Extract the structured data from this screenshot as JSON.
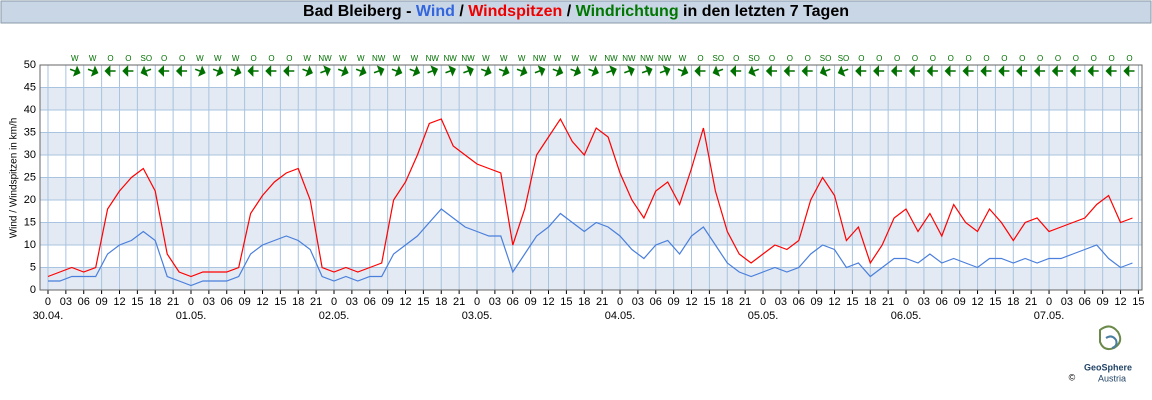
{
  "chart_data": {
    "type": "line",
    "title": [
      {
        "text": "Bad Bleiberg - ",
        "color": "#000000"
      },
      {
        "text": "Wind",
        "color": "#3366dd"
      },
      {
        "text": " / ",
        "color": "#000000"
      },
      {
        "text": "Windspitzen",
        "color": "#ee0000"
      },
      {
        "text": " / ",
        "color": "#000000"
      },
      {
        "text": "Windrichtung",
        "color": "#007700"
      },
      {
        "text": " in den letzten 7 Tagen",
        "color": "#000000"
      }
    ],
    "y_label": "Wind / Windspitzen in km/h",
    "x": [
      0,
      2,
      4,
      6,
      8,
      10,
      12,
      14,
      16,
      18,
      20,
      22,
      24,
      26,
      28,
      30,
      32,
      34,
      36,
      38,
      40,
      42,
      44,
      46,
      48,
      50,
      52,
      54,
      56,
      58,
      60,
      62,
      64,
      66,
      68,
      70,
      72,
      74,
      76,
      78,
      80,
      82,
      84,
      86,
      88,
      90,
      92,
      94,
      96,
      98,
      100,
      102,
      104,
      106,
      108,
      110,
      112,
      114,
      116,
      118,
      120,
      122,
      124,
      126,
      128,
      130,
      132,
      134,
      136,
      138,
      140,
      142,
      144,
      146,
      148,
      150,
      152,
      154,
      156,
      158,
      160,
      162,
      164,
      166,
      168,
      170,
      172,
      174,
      176,
      178,
      180,
      182
    ],
    "series": [
      {
        "name": "Windspitzen",
        "color": "#ff0000",
        "values": [
          3,
          4,
          5,
          4,
          5,
          18,
          22,
          25,
          27,
          22,
          8,
          4,
          3,
          4,
          4,
          4,
          5,
          17,
          21,
          24,
          26,
          27,
          20,
          5,
          4,
          5,
          4,
          5,
          6,
          20,
          24,
          30,
          37,
          38,
          32,
          30,
          28,
          27,
          26,
          10,
          18,
          30,
          34,
          38,
          33,
          30,
          36,
          34,
          26,
          20,
          16,
          22,
          24,
          19,
          27,
          36,
          22,
          13,
          8,
          6,
          8,
          10,
          9,
          11,
          20,
          25,
          21,
          11,
          14,
          6,
          10,
          16,
          18,
          13,
          17,
          12,
          19,
          15,
          13,
          18,
          15,
          11,
          15,
          16,
          13,
          14,
          15,
          16,
          19,
          21,
          15,
          16
        ]
      },
      {
        "name": "Wind",
        "color": "#4a7fdc",
        "values": [
          2,
          2,
          3,
          3,
          3,
          8,
          10,
          11,
          13,
          11,
          3,
          2,
          1,
          2,
          2,
          2,
          3,
          8,
          10,
          11,
          12,
          11,
          9,
          3,
          2,
          3,
          2,
          3,
          3,
          8,
          10,
          12,
          15,
          18,
          16,
          14,
          13,
          12,
          12,
          4,
          8,
          12,
          14,
          17,
          15,
          13,
          15,
          14,
          12,
          9,
          7,
          10,
          11,
          8,
          12,
          14,
          10,
          6,
          4,
          3,
          4,
          5,
          4,
          5,
          8,
          10,
          9,
          5,
          6,
          3,
          5,
          7,
          7,
          6,
          8,
          6,
          7,
          6,
          5,
          7,
          7,
          6,
          7,
          6,
          7,
          7,
          8,
          9,
          10,
          7,
          5,
          6
        ]
      }
    ],
    "direction": {
      "color": "#007000",
      "x": [
        4.5,
        7.5,
        10.5,
        13.5,
        16.5,
        19.5,
        22.5,
        25.5,
        28.5,
        31.5,
        34.5,
        37.5,
        40.5,
        43.5,
        46.5,
        49.5,
        52.5,
        55.5,
        58.5,
        61.5,
        64.5,
        67.5,
        70.5,
        73.5,
        76.5,
        79.5,
        82.5,
        85.5,
        88.5,
        91.5,
        94.5,
        97.5,
        100.5,
        103.5,
        106.5,
        109.5,
        112.5,
        115.5,
        118.5,
        121.5,
        124.5,
        127.5,
        130.5,
        133.5,
        136.5,
        139.5,
        142.5,
        145.5,
        148.5,
        151.5,
        154.5,
        157.5,
        160.5,
        163.5,
        166.5,
        169.5,
        172.5,
        175.5,
        178.5,
        181.5
      ],
      "labels": [
        "W",
        "W",
        "O",
        "O",
        "SO",
        "O",
        "O",
        "W",
        "W",
        "W",
        "O",
        "O",
        "O",
        "W",
        "NW",
        "W",
        "W",
        "NW",
        "W",
        "W",
        "NW",
        "NW",
        "NW",
        "W",
        "W",
        "W",
        "NW",
        "W",
        "W",
        "W",
        "NW",
        "NW",
        "NW",
        "NW",
        "W",
        "O",
        "SO",
        "O",
        "SO",
        "O",
        "O",
        "O",
        "SO",
        "SO",
        "O",
        "O",
        "O",
        "O",
        "O",
        "O",
        "O",
        "O",
        "O",
        "O",
        "O",
        "O",
        "O",
        "O",
        "O",
        "O"
      ]
    },
    "xlim": [
      -1.34,
      183.6
    ],
    "ylim": [
      0,
      50
    ],
    "yticks": [
      0,
      5,
      10,
      15,
      20,
      25,
      30,
      35,
      40,
      45,
      50
    ],
    "xticks": [
      0,
      {
        "value": 3,
        "label": "03"
      },
      {
        "value": 6,
        "label": "06"
      },
      {
        "value": 9,
        "label": "09"
      },
      {
        "value": 12,
        "label": "12"
      },
      {
        "value": 15,
        "label": "15"
      },
      {
        "value": 18,
        "label": "18"
      },
      {
        "value": 21,
        "label": "21"
      },
      {
        "value": 24,
        "label": "0"
      },
      {
        "value": 27,
        "label": "03"
      },
      {
        "value": 30,
        "label": "06"
      },
      {
        "value": 33,
        "label": "09"
      },
      {
        "value": 36,
        "label": "12"
      },
      {
        "value": 39,
        "label": "15"
      },
      {
        "value": 42,
        "label": "18"
      },
      {
        "value": 45,
        "label": "21"
      },
      {
        "value": 48,
        "label": "0"
      },
      {
        "value": 51,
        "label": "03"
      },
      {
        "value": 54,
        "label": "06"
      },
      {
        "value": 57,
        "label": "09"
      },
      {
        "value": 60,
        "label": "12"
      },
      {
        "value": 63,
        "label": "15"
      },
      {
        "value": 66,
        "label": "18"
      },
      {
        "value": 69,
        "label": "21"
      },
      {
        "value": 72,
        "label": "0"
      },
      {
        "value": 75,
        "label": "03"
      },
      {
        "value": 78,
        "label": "06"
      },
      {
        "value": 81,
        "label": "09"
      },
      {
        "value": 84,
        "label": "12"
      },
      {
        "value": 87,
        "label": "15"
      },
      {
        "value": 90,
        "label": "18"
      },
      {
        "value": 93,
        "label": "21"
      },
      {
        "value": 96,
        "label": "0"
      },
      {
        "value": 99,
        "label": "03"
      },
      {
        "value": 102,
        "label": "06"
      },
      {
        "value": 105,
        "label": "09"
      },
      {
        "value": 108,
        "label": "12"
      },
      {
        "value": 111,
        "label": "15"
      },
      {
        "value": 114,
        "label": "18"
      },
      {
        "value": 117,
        "label": "21"
      },
      {
        "value": 120,
        "label": "0"
      },
      {
        "value": 123,
        "label": "03"
      },
      {
        "value": 126,
        "label": "06"
      },
      {
        "value": 129,
        "label": "09"
      },
      {
        "value": 132,
        "label": "12"
      },
      {
        "value": 135,
        "label": "15"
      },
      {
        "value": 138,
        "label": "18"
      },
      {
        "value": 141,
        "label": "21"
      },
      {
        "value": 144,
        "label": "0"
      },
      {
        "value": 147,
        "label": "03"
      },
      {
        "value": 150,
        "label": "06"
      },
      {
        "value": 153,
        "label": "09"
      },
      {
        "value": 156,
        "label": "12"
      },
      {
        "value": 159,
        "label": "15"
      },
      {
        "value": 162,
        "label": "18"
      },
      {
        "value": 165,
        "label": "21"
      },
      {
        "value": 168,
        "label": "0"
      },
      {
        "value": 171,
        "label": "03"
      },
      {
        "value": 174,
        "label": "06"
      },
      {
        "value": 177,
        "label": "09"
      },
      {
        "value": 180,
        "label": "12"
      },
      {
        "value": 183,
        "label": "15"
      }
    ],
    "date_labels": [
      {
        "value": 0,
        "label": "30.04."
      },
      {
        "value": 24,
        "label": "01.05."
      },
      {
        "value": 48,
        "label": "02.05."
      },
      {
        "value": 72,
        "label": "03.05."
      },
      {
        "value": 96,
        "label": "04.05."
      },
      {
        "value": 120,
        "label": "05.05."
      },
      {
        "value": 144,
        "label": "06.05."
      },
      {
        "value": 168,
        "label": "07.05."
      }
    ],
    "grid": true,
    "logo": {
      "name": "GeoSphere",
      "sub": "Austria",
      "copyright": "©"
    }
  }
}
